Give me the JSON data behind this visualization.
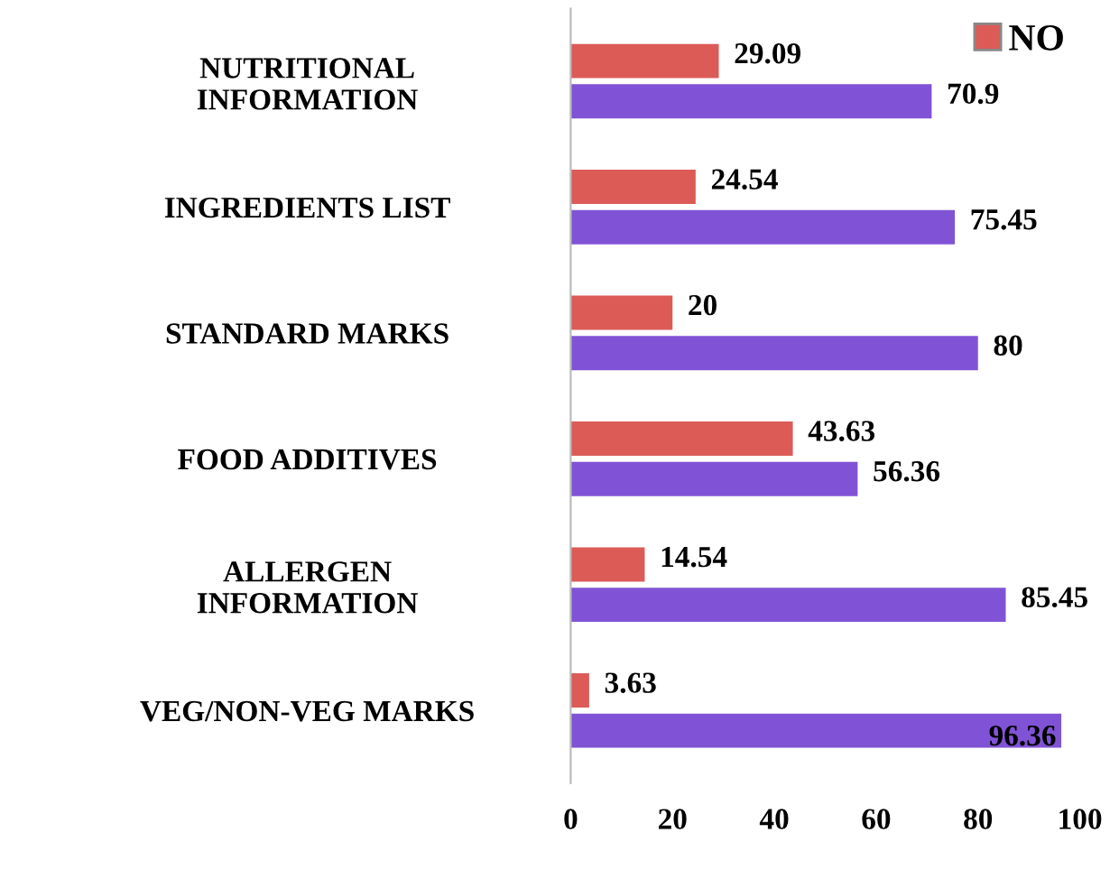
{
  "chart_data": {
    "type": "bar",
    "orientation": "horizontal",
    "categories": [
      "NUTRITIONAL\nINFORMATION",
      "INGREDIENTS LIST",
      "STANDARD MARKS",
      "FOOD ADDITIVES",
      "ALLERGEN\nINFORMATION",
      "VEG/NON-VEG MARKS"
    ],
    "series": [
      {
        "name": "NO",
        "color": "#dc5b57",
        "values": [
          29.09,
          24.54,
          20,
          43.63,
          14.54,
          3.63
        ]
      },
      {
        "color": "#8053d6",
        "values": [
          70.9,
          75.45,
          80,
          56.36,
          85.45,
          96.36
        ]
      }
    ],
    "xlim": [
      0,
      100
    ],
    "xticks": [
      0,
      20,
      40,
      60,
      80,
      100
    ],
    "grid": false,
    "legend": "top right",
    "data_labels": true
  }
}
